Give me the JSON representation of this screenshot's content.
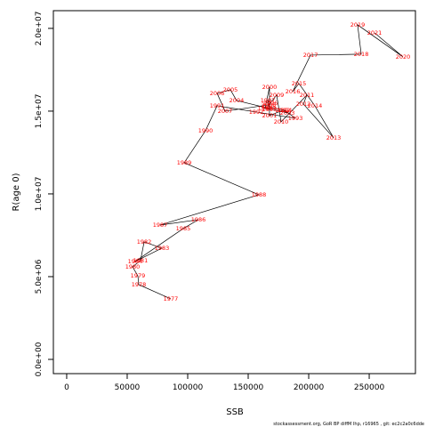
{
  "chart_data": {
    "type": "scatter",
    "x_label": "SSB",
    "y_label": "R(age 0)",
    "footer": "stockassessment.org, GoR BP diffM Ihp, r16965 , git: ec2c2a0c6dde",
    "labels": [
      "1977",
      "1978",
      "1979",
      "1980",
      "1981",
      "1982",
      "1983",
      "1984",
      "1985",
      "1986",
      "1987",
      "1988",
      "1989",
      "1990",
      "1991",
      "1992",
      "1993",
      "1994",
      "1995",
      "1996",
      "1997",
      "1998",
      "1999",
      "2000",
      "2001",
      "2002",
      "2003",
      "2004",
      "2005",
      "2006",
      "2007",
      "2008",
      "2009",
      "2010",
      "2011",
      "2012",
      "2013",
      "2014",
      "2015",
      "2016",
      "2017",
      "2018",
      "2019",
      "2020",
      "2021"
    ],
    "x": [
      86000,
      59600,
      58800,
      54400,
      61000,
      64000,
      78700,
      56600,
      96300,
      108800,
      77200,
      158800,
      97100,
      114700,
      124300,
      156600,
      189000,
      180100,
      166900,
      168400,
      166200,
      167600,
      163900,
      167600,
      167600,
      178700,
      182400,
      140400,
      135300,
      124300,
      130900,
      166900,
      173500,
      177200,
      198500,
      195600,
      220600,
      205100,
      191900,
      186800,
      201500,
      243400,
      240400,
      277900,
      254400
    ],
    "values": [
      3656000,
      4516000,
      5054000,
      5591000,
      5968000,
      7097000,
      6720000,
      5914000,
      7903000,
      8441000,
      8118000,
      9946000,
      11882000,
      13817000,
      15322000,
      14946000,
      14570000,
      15054000,
      15269000,
      15484000,
      15645000,
      15107000,
      15161000,
      16452000,
      14731000,
      15054000,
      14892000,
      15645000,
      16290000,
      16075000,
      15000000,
      15376000,
      15968000,
      14355000,
      15968000,
      15430000,
      13387000,
      15322000,
      16667000,
      16183000,
      18387000,
      18441000,
      20215000,
      18280000,
      19731000
    ],
    "color": "#ff0000",
    "line_color": "#000000",
    "xlim": [
      -11000,
      288200
    ],
    "ylim": [
      -860000,
      21070000
    ],
    "xticks": [
      0,
      50000,
      100000,
      150000,
      200000,
      250000
    ],
    "yticks": [
      {
        "value": 0,
        "label": "0.0e+00"
      },
      {
        "value": 5000000,
        "label": "5.0e+06"
      },
      {
        "value": 10000000,
        "label": "1.0e+07"
      },
      {
        "value": 15000000,
        "label": "1.5e+07"
      },
      {
        "value": 20000000,
        "label": "2.0e+07"
      }
    ]
  }
}
